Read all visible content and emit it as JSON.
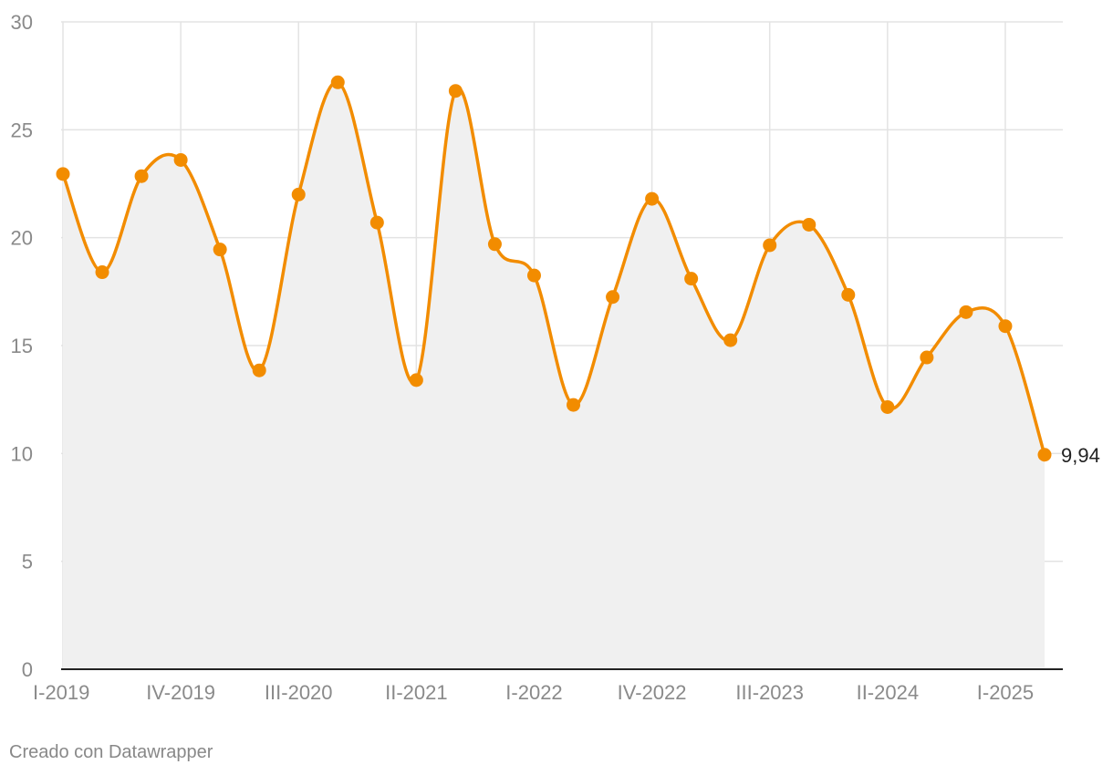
{
  "chart_data": {
    "type": "area",
    "title": "",
    "xlabel": "",
    "ylabel": "",
    "x": [
      "I-2019",
      "II-2019",
      "III-2019",
      "IV-2019",
      "I-2020",
      "II-2020",
      "III-2020",
      "IV-2020",
      "I-2021",
      "II-2021",
      "III-2021",
      "IV-2021",
      "I-2022",
      "II-2022",
      "III-2022",
      "IV-2022",
      "I-2023",
      "II-2023",
      "III-2023",
      "IV-2023",
      "I-2024",
      "II-2024",
      "III-2024",
      "IV-2024",
      "I-2025",
      "II-2025"
    ],
    "series": [
      {
        "values": [
          22.95,
          18.4,
          22.85,
          23.6,
          19.45,
          13.85,
          22.0,
          27.2,
          20.7,
          13.4,
          26.8,
          19.7,
          18.25,
          12.25,
          17.25,
          21.8,
          18.1,
          15.25,
          19.65,
          20.6,
          17.35,
          12.15,
          14.45,
          16.55,
          15.9,
          9.94
        ]
      }
    ],
    "x_tick_labels": [
      "I-2019",
      "IV-2019",
      "III-2020",
      "II-2021",
      "I-2022",
      "IV-2022",
      "III-2023",
      "II-2024",
      "I-2025"
    ],
    "y_ticks": [
      0,
      5,
      10,
      15,
      20,
      25,
      30
    ],
    "ylim": [
      0,
      30
    ],
    "end_label": "9,94",
    "grid": true,
    "line_color": "#f28c00",
    "area_color": "#f0f0f0"
  },
  "footer": {
    "credit": "Creado con Datawrapper"
  }
}
